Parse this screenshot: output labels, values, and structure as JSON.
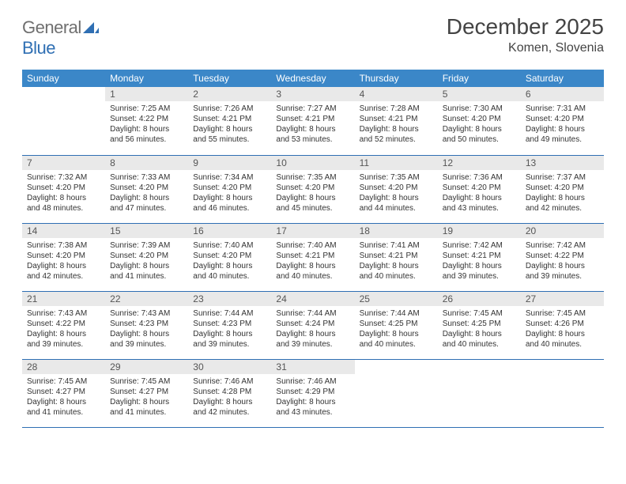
{
  "logo": {
    "word1": "General",
    "word2": "Blue"
  },
  "title": "December 2025",
  "location": "Komen, Slovenia",
  "colors": {
    "header_bg": "#3b87c8",
    "header_text": "#ffffff",
    "daynum_bg": "#e9e9e9",
    "border": "#2f6fb3",
    "logo_gray": "#6f6f6f",
    "logo_blue": "#2f6fb3",
    "text": "#333333"
  },
  "weekdays": [
    "Sunday",
    "Monday",
    "Tuesday",
    "Wednesday",
    "Thursday",
    "Friday",
    "Saturday"
  ],
  "first_weekday_index": 1,
  "days": [
    {
      "n": "1",
      "sunrise": "7:25 AM",
      "sunset": "4:22 PM",
      "daylight": "8 hours and 56 minutes."
    },
    {
      "n": "2",
      "sunrise": "7:26 AM",
      "sunset": "4:21 PM",
      "daylight": "8 hours and 55 minutes."
    },
    {
      "n": "3",
      "sunrise": "7:27 AM",
      "sunset": "4:21 PM",
      "daylight": "8 hours and 53 minutes."
    },
    {
      "n": "4",
      "sunrise": "7:28 AM",
      "sunset": "4:21 PM",
      "daylight": "8 hours and 52 minutes."
    },
    {
      "n": "5",
      "sunrise": "7:30 AM",
      "sunset": "4:20 PM",
      "daylight": "8 hours and 50 minutes."
    },
    {
      "n": "6",
      "sunrise": "7:31 AM",
      "sunset": "4:20 PM",
      "daylight": "8 hours and 49 minutes."
    },
    {
      "n": "7",
      "sunrise": "7:32 AM",
      "sunset": "4:20 PM",
      "daylight": "8 hours and 48 minutes."
    },
    {
      "n": "8",
      "sunrise": "7:33 AM",
      "sunset": "4:20 PM",
      "daylight": "8 hours and 47 minutes."
    },
    {
      "n": "9",
      "sunrise": "7:34 AM",
      "sunset": "4:20 PM",
      "daylight": "8 hours and 46 minutes."
    },
    {
      "n": "10",
      "sunrise": "7:35 AM",
      "sunset": "4:20 PM",
      "daylight": "8 hours and 45 minutes."
    },
    {
      "n": "11",
      "sunrise": "7:35 AM",
      "sunset": "4:20 PM",
      "daylight": "8 hours and 44 minutes."
    },
    {
      "n": "12",
      "sunrise": "7:36 AM",
      "sunset": "4:20 PM",
      "daylight": "8 hours and 43 minutes."
    },
    {
      "n": "13",
      "sunrise": "7:37 AM",
      "sunset": "4:20 PM",
      "daylight": "8 hours and 42 minutes."
    },
    {
      "n": "14",
      "sunrise": "7:38 AM",
      "sunset": "4:20 PM",
      "daylight": "8 hours and 42 minutes."
    },
    {
      "n": "15",
      "sunrise": "7:39 AM",
      "sunset": "4:20 PM",
      "daylight": "8 hours and 41 minutes."
    },
    {
      "n": "16",
      "sunrise": "7:40 AM",
      "sunset": "4:20 PM",
      "daylight": "8 hours and 40 minutes."
    },
    {
      "n": "17",
      "sunrise": "7:40 AM",
      "sunset": "4:21 PM",
      "daylight": "8 hours and 40 minutes."
    },
    {
      "n": "18",
      "sunrise": "7:41 AM",
      "sunset": "4:21 PM",
      "daylight": "8 hours and 40 minutes."
    },
    {
      "n": "19",
      "sunrise": "7:42 AM",
      "sunset": "4:21 PM",
      "daylight": "8 hours and 39 minutes."
    },
    {
      "n": "20",
      "sunrise": "7:42 AM",
      "sunset": "4:22 PM",
      "daylight": "8 hours and 39 minutes."
    },
    {
      "n": "21",
      "sunrise": "7:43 AM",
      "sunset": "4:22 PM",
      "daylight": "8 hours and 39 minutes."
    },
    {
      "n": "22",
      "sunrise": "7:43 AM",
      "sunset": "4:23 PM",
      "daylight": "8 hours and 39 minutes."
    },
    {
      "n": "23",
      "sunrise": "7:44 AM",
      "sunset": "4:23 PM",
      "daylight": "8 hours and 39 minutes."
    },
    {
      "n": "24",
      "sunrise": "7:44 AM",
      "sunset": "4:24 PM",
      "daylight": "8 hours and 39 minutes."
    },
    {
      "n": "25",
      "sunrise": "7:44 AM",
      "sunset": "4:25 PM",
      "daylight": "8 hours and 40 minutes."
    },
    {
      "n": "26",
      "sunrise": "7:45 AM",
      "sunset": "4:25 PM",
      "daylight": "8 hours and 40 minutes."
    },
    {
      "n": "27",
      "sunrise": "7:45 AM",
      "sunset": "4:26 PM",
      "daylight": "8 hours and 40 minutes."
    },
    {
      "n": "28",
      "sunrise": "7:45 AM",
      "sunset": "4:27 PM",
      "daylight": "8 hours and 41 minutes."
    },
    {
      "n": "29",
      "sunrise": "7:45 AM",
      "sunset": "4:27 PM",
      "daylight": "8 hours and 41 minutes."
    },
    {
      "n": "30",
      "sunrise": "7:46 AM",
      "sunset": "4:28 PM",
      "daylight": "8 hours and 42 minutes."
    },
    {
      "n": "31",
      "sunrise": "7:46 AM",
      "sunset": "4:29 PM",
      "daylight": "8 hours and 43 minutes."
    }
  ],
  "labels": {
    "sunrise": "Sunrise:",
    "sunset": "Sunset:",
    "daylight": "Daylight:"
  }
}
